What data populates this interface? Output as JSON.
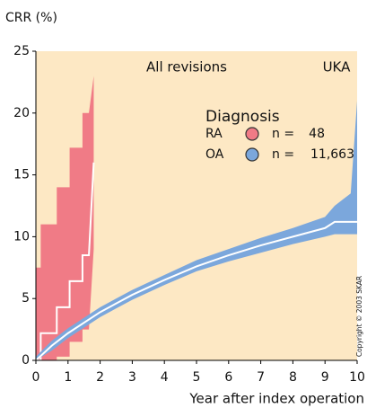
{
  "chart_data": {
    "type": "band_line",
    "title": "All revisions",
    "subtitle": "UKA",
    "y_label": "CRR (%)",
    "x_label": "Year after index operation",
    "annotation": "Copyright © 2003 SKAR",
    "legend_title": "Diagnosis",
    "xlim": [
      0,
      10
    ],
    "xticks": [
      0,
      1,
      2,
      3,
      4,
      5,
      6,
      7,
      8,
      9,
      10
    ],
    "ylim": [
      0,
      25
    ],
    "yticks": [
      0,
      5,
      10,
      15,
      20,
      25
    ],
    "background": "#fde8c4",
    "grid": false,
    "line_color": "#ffffff",
    "series": [
      {
        "name": "RA",
        "color": "#f07b86",
        "n_prefix": "n =",
        "n": 48,
        "x": [
          0,
          0.15,
          0.15,
          0.65,
          0.65,
          1.05,
          1.05,
          1.45,
          1.45,
          1.65,
          1.8
        ],
        "values": [
          0,
          0,
          2.2,
          2.2,
          4.3,
          4.3,
          6.4,
          6.4,
          8.5,
          8.5,
          16
        ],
        "upper": [
          7.5,
          7.5,
          11,
          11,
          14,
          14,
          17.2,
          17.2,
          20,
          20,
          23
        ],
        "lower": [
          0,
          0,
          0,
          0,
          0.3,
          0.3,
          1.5,
          1.5,
          2.5,
          2.5,
          9
        ]
      },
      {
        "name": "OA",
        "color": "#7ba7dc",
        "n_prefix": "n =",
        "n": 11663,
        "n_label": "11,663",
        "x": [
          0,
          0.5,
          1,
          2,
          3,
          4,
          5,
          6,
          7,
          8,
          9,
          9.3,
          9.8,
          10
        ],
        "values": [
          0,
          1.2,
          2.2,
          3.9,
          5.3,
          6.5,
          7.6,
          8.5,
          9.3,
          10,
          10.7,
          11.2,
          11.2,
          11.2
        ],
        "upper": [
          0.3,
          1.6,
          2.6,
          4.3,
          5.7,
          6.9,
          8.1,
          9.0,
          9.9,
          10.7,
          11.6,
          12.5,
          13.5,
          21
        ],
        "lower": [
          0,
          0.8,
          1.8,
          3.5,
          4.9,
          6.1,
          7.2,
          8.0,
          8.7,
          9.4,
          10.0,
          10.2,
          10.2,
          10.2
        ]
      }
    ]
  }
}
